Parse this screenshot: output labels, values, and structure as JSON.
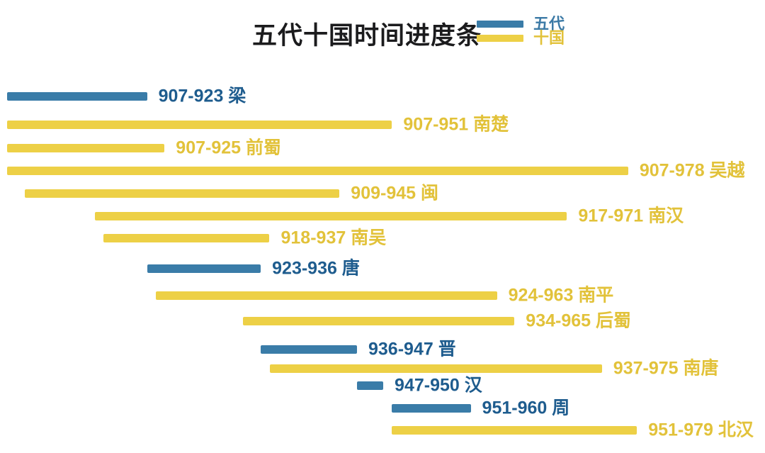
{
  "title": "五代十国时间进度条",
  "legend": {
    "position": "top-right",
    "items": [
      {
        "label": "五代",
        "swatch_color": "#3a7ca8",
        "text_color": "#3c7aa6"
      },
      {
        "label": "十国",
        "swatch_color": "#edd046",
        "text_color": "#e2c23a"
      }
    ]
  },
  "colors": {
    "background": "#ffffff",
    "title_text": "#1b1b1d",
    "five_dynasties_bar": "#3a7ca8",
    "five_dynasties_text": "#1e5c8e",
    "ten_kingdoms_bar": "#edd046",
    "ten_kingdoms_text": "#e2c23a"
  },
  "chart_data": {
    "type": "bar",
    "subtype": "horizontal-timeline-gantt",
    "title": "五代十国时间进度条",
    "xlabel": "",
    "ylabel": "",
    "xlim": [
      907,
      979
    ],
    "grid": false,
    "legend_position": "top-right",
    "legend_entries": [
      "五代",
      "十国"
    ],
    "series": [
      {
        "name": "梁",
        "group": "五代",
        "start": 907,
        "end": 923,
        "label": "907-923 梁"
      },
      {
        "name": "南楚",
        "group": "十国",
        "start": 907,
        "end": 951,
        "label": "907-951 南楚"
      },
      {
        "name": "前蜀",
        "group": "十国",
        "start": 907,
        "end": 925,
        "label": "907-925 前蜀"
      },
      {
        "name": "吴越",
        "group": "十国",
        "start": 907,
        "end": 978,
        "label": "907-978 吴越"
      },
      {
        "name": "闽",
        "group": "十国",
        "start": 909,
        "end": 945,
        "label": "909-945 闽"
      },
      {
        "name": "南汉",
        "group": "十国",
        "start": 917,
        "end": 971,
        "label": "917-971 南汉"
      },
      {
        "name": "南吴",
        "group": "十国",
        "start": 918,
        "end": 937,
        "label": "918-937 南吴"
      },
      {
        "name": "唐",
        "group": "五代",
        "start": 923,
        "end": 936,
        "label": "923-936 唐"
      },
      {
        "name": "南平",
        "group": "十国",
        "start": 924,
        "end": 963,
        "label": "924-963 南平"
      },
      {
        "name": "后蜀",
        "group": "十国",
        "start": 934,
        "end": 965,
        "label": "934-965 后蜀"
      },
      {
        "name": "晋",
        "group": "五代",
        "start": 936,
        "end": 947,
        "label": "936-947 晋"
      },
      {
        "name": "南唐",
        "group": "十国",
        "start": 937,
        "end": 975,
        "label": "937-975 南唐"
      },
      {
        "name": "汉",
        "group": "五代",
        "start": 947,
        "end": 950,
        "label": "947-950 汉"
      },
      {
        "name": "周",
        "group": "五代",
        "start": 951,
        "end": 960,
        "label": "951-960 周"
      },
      {
        "name": "北汉",
        "group": "十国",
        "start": 951,
        "end": 979,
        "label": "951-979 北汉"
      }
    ]
  }
}
